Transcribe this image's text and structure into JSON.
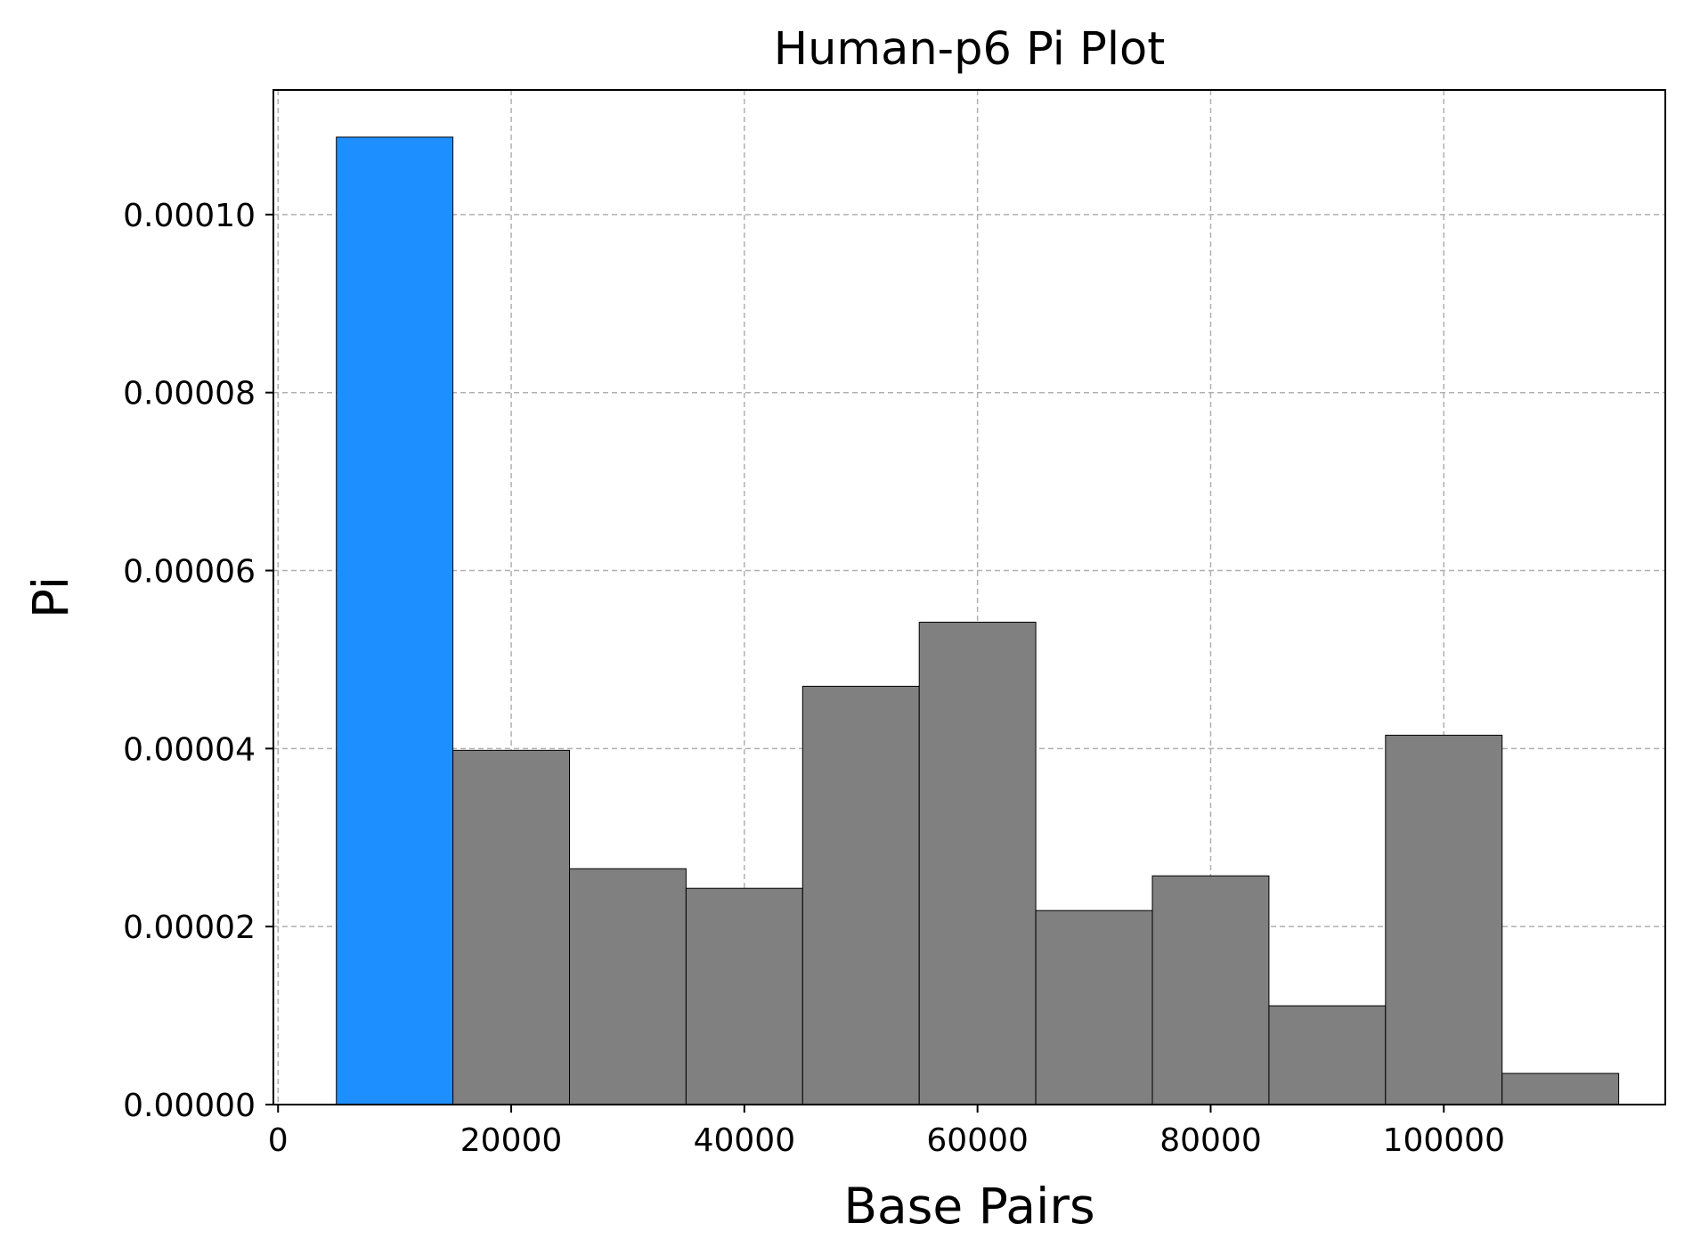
{
  "chart_data": {
    "type": "bar",
    "title": "Human-p6 Pi Plot",
    "xlabel": "Base Pairs",
    "ylabel": "Pi",
    "bin_width": 10000,
    "x": [
      10000,
      20000,
      30000,
      40000,
      50000,
      60000,
      70000,
      80000,
      90000,
      100000,
      110000
    ],
    "values": [
      0.0001087,
      3.98e-05,
      2.65e-05,
      2.43e-05,
      4.7e-05,
      5.42e-05,
      2.18e-05,
      2.57e-05,
      1.11e-05,
      4.15e-05,
      3.5e-06
    ],
    "highlight_index": 0,
    "colors": {
      "highlight": "#1E8FFF",
      "default": "#808080",
      "edge": "#000000",
      "grid": "#b0b0b0"
    },
    "xlim": [
      -400,
      119000
    ],
    "ylim": [
      0,
      0.000114
    ],
    "xticks": [
      0,
      20000,
      40000,
      60000,
      80000,
      100000
    ],
    "xtick_labels": [
      "0",
      "20000",
      "40000",
      "60000",
      "80000",
      "100000"
    ],
    "yticks": [
      0,
      2e-05,
      4e-05,
      6e-05,
      8e-05,
      0.0001
    ],
    "ytick_labels": [
      "0.00000",
      "0.00002",
      "0.00004",
      "0.00006",
      "0.00008",
      "0.00010"
    ],
    "grid": true,
    "grid_style": "dashed"
  }
}
